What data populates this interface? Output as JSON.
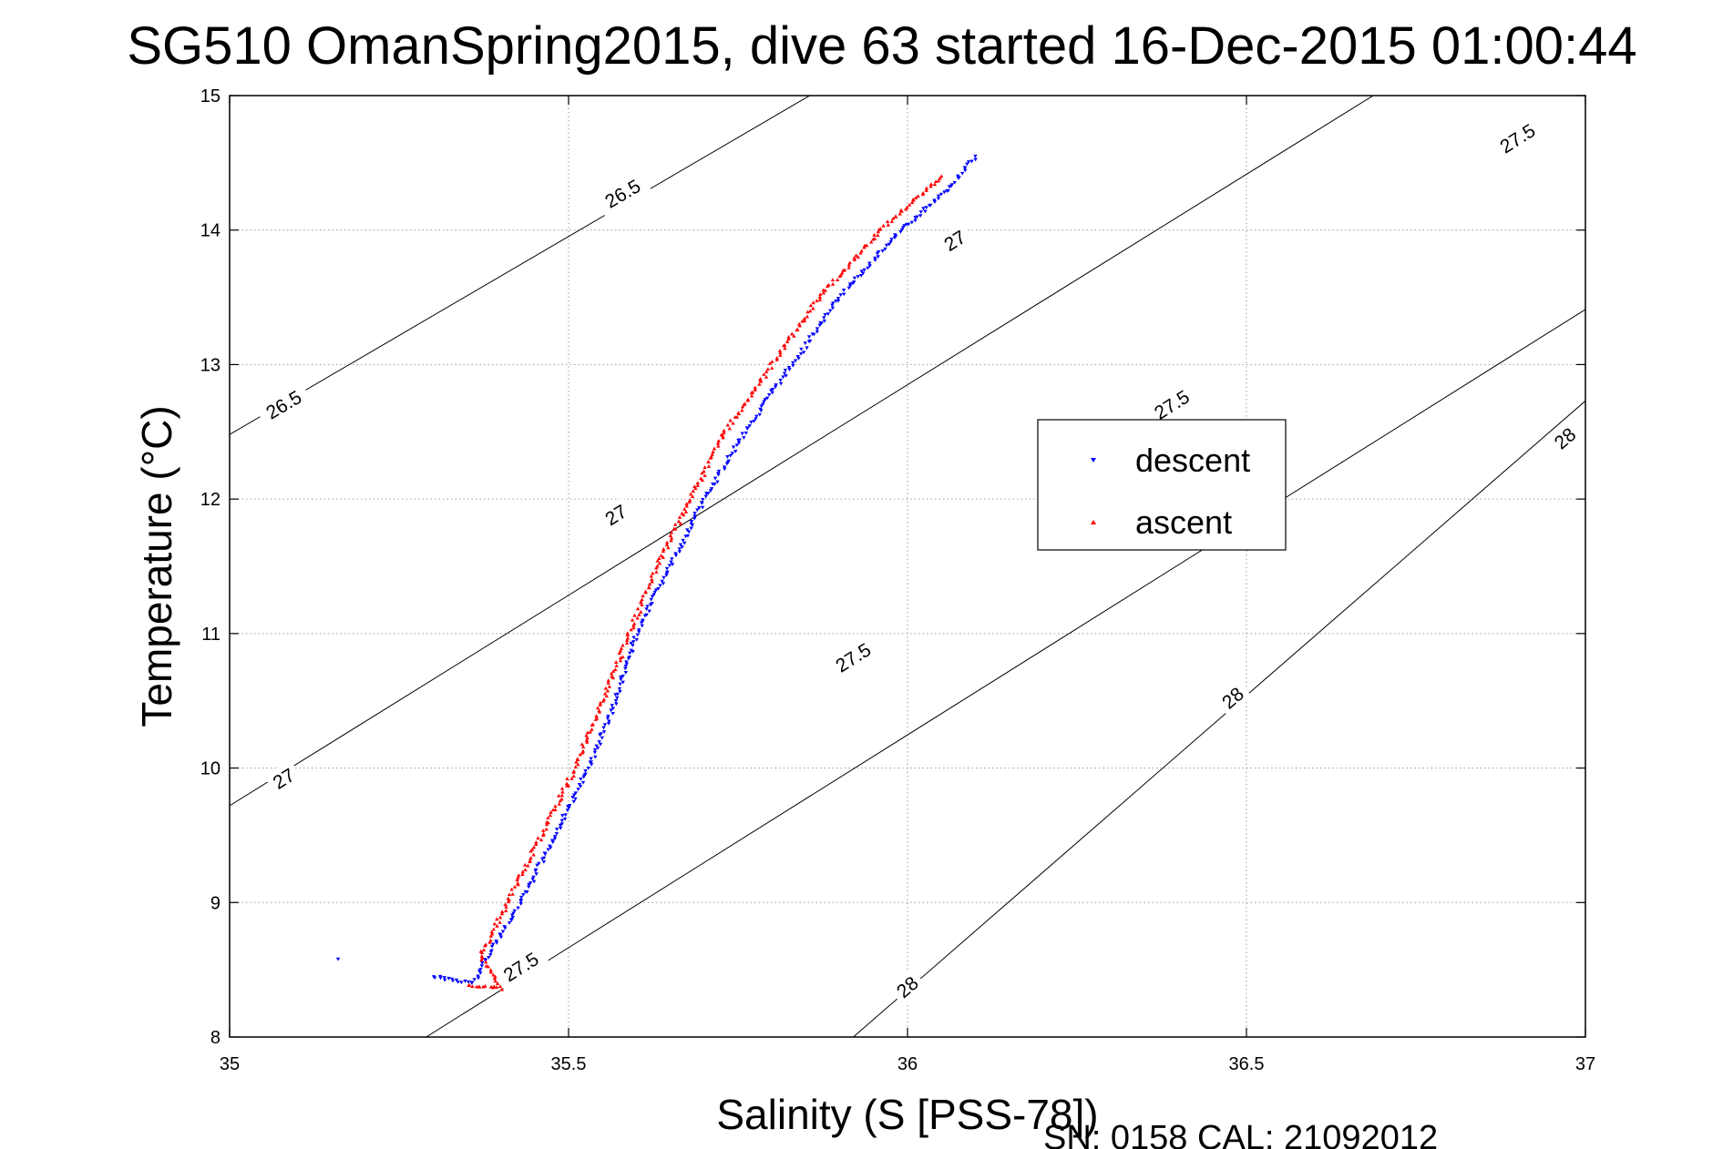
{
  "chart_data": {
    "type": "scatter",
    "title": "SG510 OmanSpring2015, dive 63 started 16-Dec-2015 01:00:44",
    "xlabel": "Salinity (S [PSS-78])",
    "ylabel": "Temperature (°C)",
    "footer": "SN: 0158  CAL: 21092012",
    "xlim": [
      35,
      37
    ],
    "ylim": [
      8,
      15
    ],
    "x_ticks": [
      35,
      35.5,
      36,
      36.5,
      37
    ],
    "x_tick_labels": [
      "35",
      "35.5",
      "36",
      "36.5",
      "37"
    ],
    "y_ticks": [
      8,
      9,
      10,
      11,
      12,
      13,
      14,
      15
    ],
    "y_tick_labels": [
      "8",
      "9",
      "10",
      "11",
      "12",
      "13",
      "14",
      "15"
    ],
    "grid": true,
    "legend_position": "upper-right",
    "series": [
      {
        "name": "descent",
        "color": "#0000ff",
        "marker": "triangle-down",
        "key_points": [
          [
            35.16,
            8.58
          ],
          [
            35.3,
            8.45
          ],
          [
            35.36,
            8.4
          ],
          [
            35.38,
            8.6
          ],
          [
            35.43,
            9.0
          ],
          [
            35.48,
            9.5
          ],
          [
            35.53,
            10.0
          ],
          [
            35.57,
            10.5
          ],
          [
            35.6,
            11.0
          ],
          [
            35.65,
            11.5
          ],
          [
            35.7,
            12.0
          ],
          [
            35.76,
            12.5
          ],
          [
            35.83,
            13.0
          ],
          [
            35.9,
            13.5
          ],
          [
            35.99,
            14.0
          ],
          [
            36.06,
            14.3
          ],
          [
            36.1,
            14.55
          ]
        ]
      },
      {
        "name": "ascent",
        "color": "#ff0000",
        "marker": "triangle-up",
        "key_points": [
          [
            35.35,
            8.38
          ],
          [
            35.4,
            8.36
          ],
          [
            35.37,
            8.6
          ],
          [
            35.41,
            9.0
          ],
          [
            35.46,
            9.5
          ],
          [
            35.51,
            10.0
          ],
          [
            35.55,
            10.5
          ],
          [
            35.59,
            11.0
          ],
          [
            35.63,
            11.5
          ],
          [
            35.68,
            12.0
          ],
          [
            35.73,
            12.5
          ],
          [
            35.8,
            13.0
          ],
          [
            35.87,
            13.5
          ],
          [
            35.96,
            14.0
          ],
          [
            36.05,
            14.4
          ]
        ]
      }
    ],
    "contours": [
      {
        "label": "26.5",
        "points": [
          [
            35.0,
            12.48
          ],
          [
            37.0,
            18.37
          ]
        ],
        "label_positions": [
          [
            35.08,
            12.7
          ],
          [
            35.58,
            14.27
          ]
        ]
      },
      {
        "label": "27",
        "points": [
          [
            35.0,
            9.72
          ],
          [
            37.0,
            15.98
          ]
        ],
        "label_positions": [
          [
            35.08,
            9.92
          ],
          [
            35.57,
            11.88
          ],
          [
            36.07,
            13.92
          ]
        ]
      },
      {
        "label": "27.5",
        "points": [
          [
            35.29,
            8.0
          ],
          [
            37.0,
            13.41
          ]
        ],
        "label_positions": [
          [
            35.43,
            8.52
          ],
          [
            35.92,
            10.82
          ],
          [
            36.39,
            12.7
          ],
          [
            36.9,
            14.68
          ]
        ]
      },
      {
        "label": "28",
        "points": [
          [
            35.92,
            8.0
          ],
          [
            37.0,
            12.73
          ]
        ],
        "label_positions": [
          [
            36.0,
            8.37
          ],
          [
            36.48,
            10.52
          ],
          [
            36.97,
            12.45
          ]
        ]
      }
    ]
  }
}
